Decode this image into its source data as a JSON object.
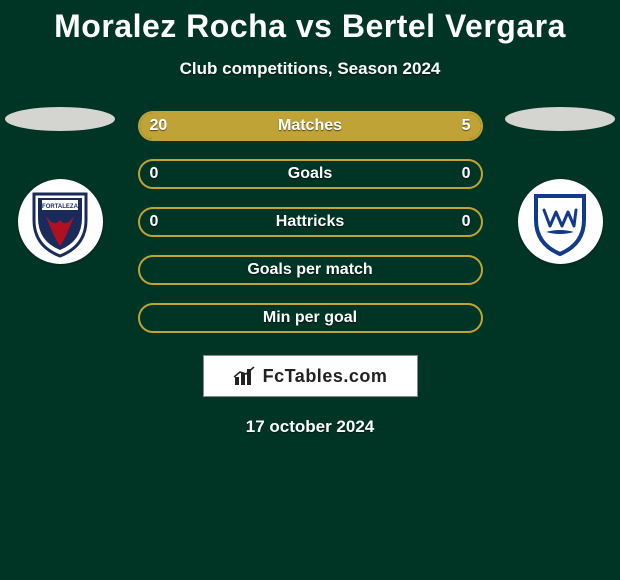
{
  "title": "Moralez Rocha vs Bertel Vergara",
  "subtitle": "Club competitions, Season 2024",
  "date": "17 october 2024",
  "colors": {
    "background": "#003424",
    "bar_fill": "#c0a336",
    "bar_border": "#c0a336",
    "text": "#ffffff",
    "brand_bg": "#ffffff",
    "shadow_ellipse": "#d4d4d0"
  },
  "home": {
    "name": "Moralez Rocha",
    "crest_colors": {
      "outer": "#ffffff",
      "ring": "#1a2a5a",
      "inner": "#b01020"
    }
  },
  "away": {
    "name": "Bertel Vergara",
    "crest_colors": {
      "outer": "#ffffff",
      "shield_border": "#123a8c",
      "shield_fill": "#ffffff"
    }
  },
  "stats": [
    {
      "label": "Matches",
      "home": "20",
      "away": "5",
      "home_pct": 80,
      "away_pct": 20,
      "show_values": true
    },
    {
      "label": "Goals",
      "home": "0",
      "away": "0",
      "home_pct": 0,
      "away_pct": 0,
      "show_values": true
    },
    {
      "label": "Hattricks",
      "home": "0",
      "away": "0",
      "home_pct": 0,
      "away_pct": 0,
      "show_values": true
    },
    {
      "label": "Goals per match",
      "home": "",
      "away": "",
      "home_pct": 0,
      "away_pct": 0,
      "show_values": false
    },
    {
      "label": "Min per goal",
      "home": "",
      "away": "",
      "home_pct": 0,
      "away_pct": 0,
      "show_values": false
    }
  ],
  "brand": "FcTables.com"
}
